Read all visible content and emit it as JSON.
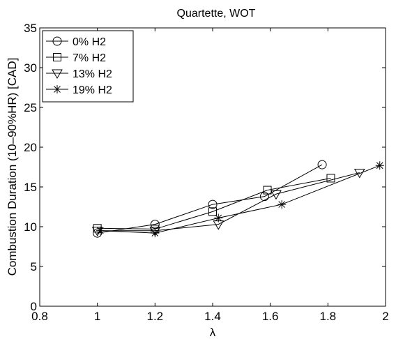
{
  "chart_data": {
    "type": "line",
    "title": "Quartette, WOT",
    "xlabel": "λ",
    "ylabel": "Combustion Duration (10–90%HR) [CAD]",
    "xlim": [
      0.8,
      2.0
    ],
    "ylim": [
      0,
      35
    ],
    "xticks": [
      "0.8",
      "1",
      "1.2",
      "1.4",
      "1.6",
      "1.8",
      "2"
    ],
    "yticks": [
      "0",
      "5",
      "10",
      "15",
      "20",
      "25",
      "30",
      "35"
    ],
    "grid": false,
    "legend_position": "top-left",
    "series": [
      {
        "name": "0% H2",
        "marker": "circle",
        "x": [
          1.0,
          1.2,
          1.4,
          1.58,
          1.78
        ],
        "y": [
          9.2,
          10.3,
          12.8,
          13.8,
          17.8
        ]
      },
      {
        "name": "7% H2",
        "marker": "square",
        "x": [
          1.0,
          1.2,
          1.4,
          1.59,
          1.81
        ],
        "y": [
          9.8,
          9.7,
          11.9,
          14.6,
          16.1
        ]
      },
      {
        "name": "13% H2",
        "marker": "triangle-down",
        "x": [
          1.0,
          1.2,
          1.42,
          1.62,
          1.91
        ],
        "y": [
          9.5,
          9.5,
          10.3,
          14.1,
          16.8
        ]
      },
      {
        "name": "19% H2",
        "marker": "asterisk",
        "x": [
          1.01,
          1.2,
          1.42,
          1.64,
          1.98
        ],
        "y": [
          9.5,
          9.2,
          11.1,
          12.8,
          17.7
        ]
      }
    ]
  }
}
